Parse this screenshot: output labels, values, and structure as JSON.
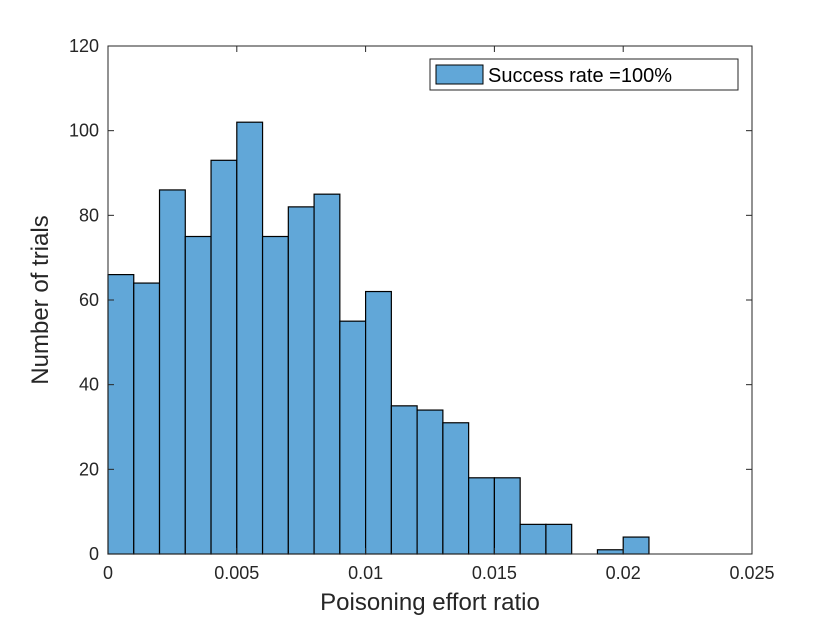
{
  "chart_data": {
    "type": "bar",
    "xlabel": "Poisoning effort ratio",
    "ylabel": "Number of trials",
    "xlim": [
      0,
      0.025
    ],
    "ylim": [
      0,
      120
    ],
    "xticks": [
      0,
      0.005,
      0.01,
      0.015,
      0.02,
      0.025
    ],
    "xtick_labels": [
      "0",
      "0.005",
      "0.01",
      "0.015",
      "0.02",
      "0.025"
    ],
    "yticks": [
      0,
      20,
      40,
      60,
      80,
      100,
      120
    ],
    "ytick_labels": [
      "0",
      "20",
      "40",
      "60",
      "80",
      "100",
      "120"
    ],
    "bin_width": 0.001,
    "bin_edges_start": [
      0,
      0.001,
      0.002,
      0.003,
      0.004,
      0.005,
      0.006,
      0.007,
      0.008,
      0.009,
      0.01,
      0.011,
      0.012,
      0.013,
      0.014,
      0.015,
      0.016,
      0.017,
      0.018,
      0.019,
      0.02
    ],
    "values": [
      66,
      64,
      86,
      75,
      93,
      102,
      75,
      82,
      85,
      55,
      62,
      35,
      34,
      31,
      18,
      18,
      7,
      7,
      0,
      1,
      4
    ],
    "series": [
      {
        "name": "Success rate =100%",
        "color": "#61a7d8"
      }
    ],
    "legend_position": "top-right",
    "grid": false
  }
}
